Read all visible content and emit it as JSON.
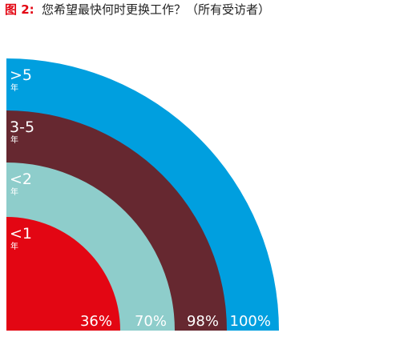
{
  "chart_data": {
    "type": "nested-quarter",
    "figure_label": "图 2:",
    "title": "您希望最快何时更换工作？（所有受访者）",
    "categories": [
      "<1",
      "<2",
      "3-5",
      ">5"
    ],
    "category_unit": "年",
    "values": [
      36,
      70,
      98,
      100
    ],
    "value_labels": [
      "36%",
      "70%",
      "98%",
      "100%"
    ],
    "colors": [
      "#e30613",
      "#8ecdcb",
      "#662830",
      "#009fdf"
    ]
  }
}
